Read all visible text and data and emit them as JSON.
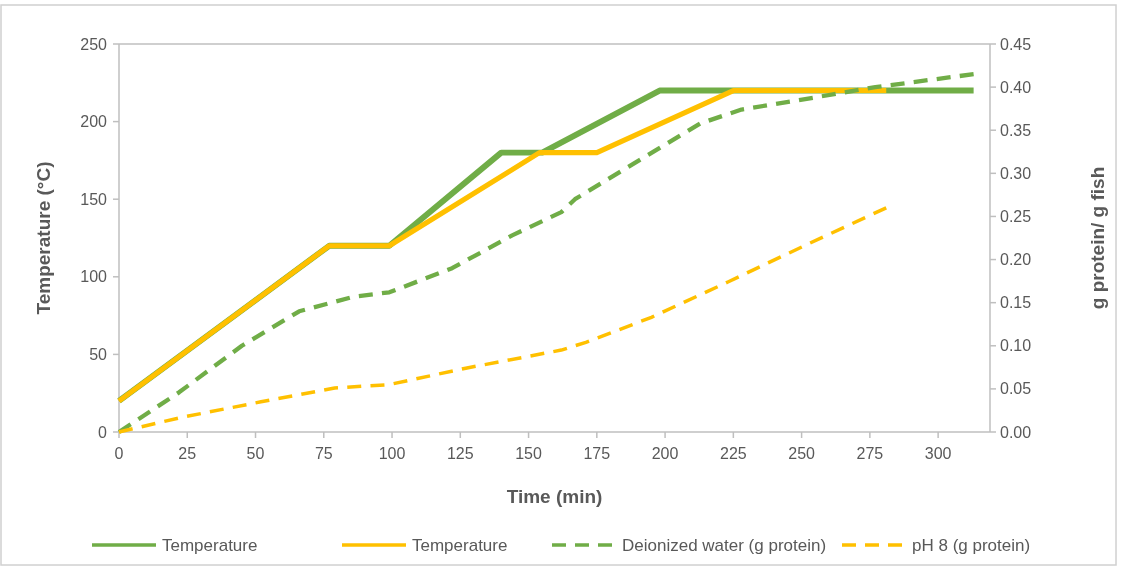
{
  "chart_data": {
    "type": "line",
    "xlabel": "Time (min)",
    "ylabel": "Temperature (°C)",
    "y2label": "g protein/  g fish",
    "xlim": [
      0,
      319
    ],
    "xticks": [
      0,
      25,
      50,
      75,
      100,
      125,
      150,
      175,
      200,
      225,
      250,
      275,
      300
    ],
    "ylim": [
      0,
      250
    ],
    "yticks": [
      0,
      50,
      100,
      150,
      200,
      250
    ],
    "y2lim": [
      0,
      0.45
    ],
    "y2ticks": [
      {
        "value": 0,
        "label": "0.00"
      },
      {
        "value": 0.05,
        "label": "0.05"
      },
      {
        "value": 0.1,
        "label": "0.10"
      },
      {
        "value": 0.15,
        "label": "0.15"
      },
      {
        "value": 0.2,
        "label": "0.20"
      },
      {
        "value": 0.25,
        "label": "0.25"
      },
      {
        "value": 0.3,
        "label": "0.30"
      },
      {
        "value": 0.35,
        "label": "0.35"
      },
      {
        "value": 0.4,
        "label": "0.40"
      },
      {
        "value": 0.45,
        "label": "0.45"
      }
    ],
    "grid": false,
    "legend": "bottom",
    "marker": "none",
    "series": [
      {
        "name": "Temperature",
        "color": "#70ad47",
        "line_style": "solid",
        "x": [
          0,
          77,
          99,
          140,
          155,
          198,
          313
        ],
        "values": [
          20,
          120,
          120,
          180,
          180,
          220,
          220
        ]
      },
      {
        "name": "Temperature",
        "color": "#ffc000",
        "line_style": "solid",
        "x": [
          0,
          77,
          99,
          154,
          175,
          225,
          281
        ],
        "values": [
          20,
          120,
          120,
          180,
          180,
          220,
          220
        ]
      },
      {
        "name": "Deionized  water (g protein)",
        "color": "#70ad47",
        "line_style": "dashed",
        "axis": "y2",
        "x": [
          0,
          22,
          45,
          66,
          86,
          99,
          122,
          144,
          162,
          167,
          192,
          213,
          228,
          253,
          277,
          313
        ],
        "values": [
          0,
          0.046,
          0.1,
          0.14,
          0.157,
          0.162,
          0.19,
          0.228,
          0.255,
          0.27,
          0.318,
          0.358,
          0.374,
          0.387,
          0.4,
          0.415
        ]
      },
      {
        "name": "pH 8 (g protein)",
        "color": "#ffc000",
        "line_style": "dashed",
        "axis": "y2",
        "x": [
          0,
          23,
          52,
          79,
          99,
          127,
          162,
          171,
          195,
          223,
          253,
          281
        ],
        "values": [
          0,
          0.017,
          0.035,
          0.051,
          0.055,
          0.074,
          0.095,
          0.104,
          0.133,
          0.174,
          0.219,
          0.26
        ]
      }
    ]
  }
}
